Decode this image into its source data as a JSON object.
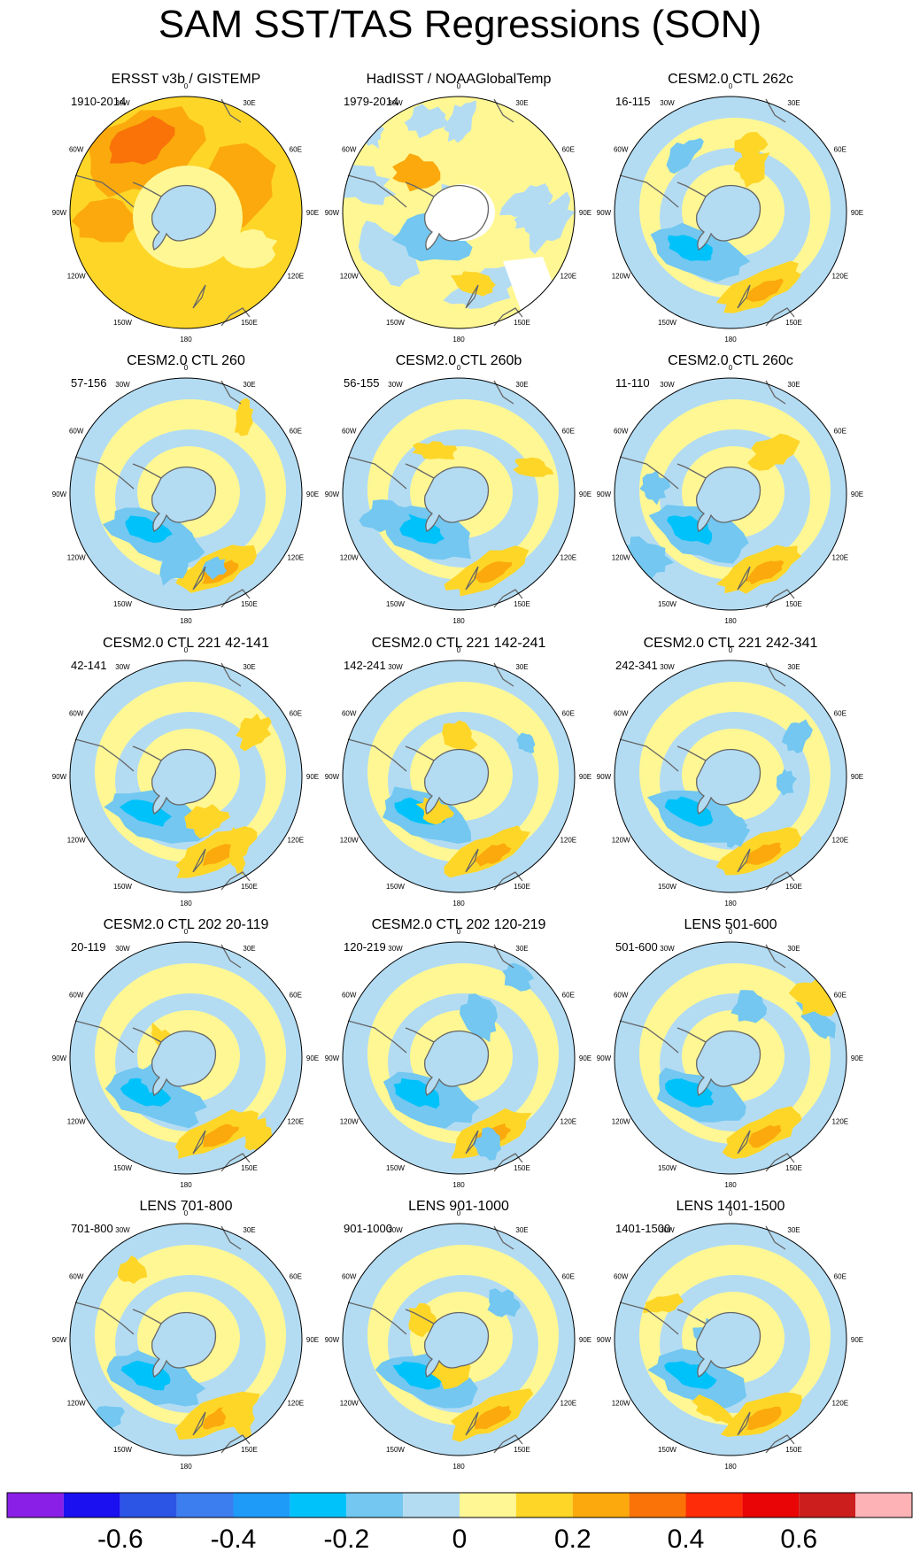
{
  "title": "SAM SST/TAS Regressions (SON)",
  "lon_labels": [
    "0",
    "30E",
    "60E",
    "90E",
    "120E",
    "150E",
    "180",
    "150W",
    "120W",
    "90W",
    "60W",
    "30W"
  ],
  "chart_data": {
    "type": "heatmap",
    "projection": "south-polar-stereographic",
    "variable": "SST/TAS regression onto SAM index (SON)",
    "panels": [
      {
        "title": "ERSST v3b / GISTEMP",
        "period": "1910-2014",
        "pattern": "obs1"
      },
      {
        "title": "HadISST / NOAAGlobalTemp",
        "period": "1979-2014",
        "pattern": "obs2"
      },
      {
        "title": "CESM2.0 CTL 262c",
        "period": "16-115",
        "pattern": "model"
      },
      {
        "title": "CESM2.0 CTL 260",
        "period": "57-156",
        "pattern": "model"
      },
      {
        "title": "CESM2.0 CTL 260b",
        "period": "56-155",
        "pattern": "model"
      },
      {
        "title": "CESM2.0 CTL 260c",
        "period": "11-110",
        "pattern": "model"
      },
      {
        "title": "CESM2.0 CTL 221 42-141",
        "period": "42-141",
        "pattern": "model"
      },
      {
        "title": "CESM2.0 CTL 221 142-241",
        "period": "142-241",
        "pattern": "model"
      },
      {
        "title": "CESM2.0 CTL 221 242-341",
        "period": "242-341",
        "pattern": "model"
      },
      {
        "title": "CESM2.0 CTL 202 20-119",
        "period": "20-119",
        "pattern": "model"
      },
      {
        "title": "CESM2.0 CTL 202 120-219",
        "period": "120-219",
        "pattern": "model"
      },
      {
        "title": "LENS 501-600",
        "period": "501-600",
        "pattern": "model"
      },
      {
        "title": "LENS 701-800",
        "period": "701-800",
        "pattern": "model"
      },
      {
        "title": "LENS 901-1000",
        "period": "901-1000",
        "pattern": "model"
      },
      {
        "title": "LENS 1401-1500",
        "period": "1401-1500",
        "pattern": "model"
      }
    ],
    "colorbar": {
      "colors": [
        "#8a20e8",
        "#1a10f0",
        "#2c55e6",
        "#3c7ef0",
        "#1e9bf8",
        "#00c2fa",
        "#73c7f0",
        "#b3dcf3",
        "#fff794",
        "#fed628",
        "#fba90c",
        "#f97309",
        "#fe2c08",
        "#e90505",
        "#cc1e1d",
        "#fdb2b5"
      ],
      "tick_labels": [
        "-0.6",
        "-0.4",
        "-0.2",
        "0",
        "0.2",
        "0.4",
        "0.6"
      ],
      "tick_values": [
        -0.6,
        -0.4,
        -0.2,
        0,
        0.2,
        0.4,
        0.6
      ],
      "range": [
        -0.8,
        0.8
      ],
      "interval": 0.1
    }
  }
}
